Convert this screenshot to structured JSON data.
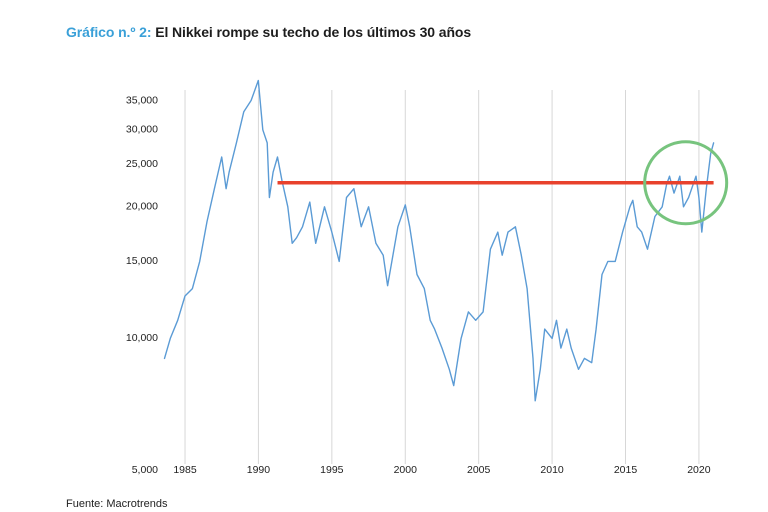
{
  "title": {
    "prefix": "Gráfico n.º 2:",
    "text": "El Nikkei rompe su techo de los últimos 30 años"
  },
  "source": "Fuente: Macrotrends",
  "colors": {
    "line": "#5b9bd5",
    "resistance": "#e8412c",
    "circle": "#77c47e",
    "grid": "#d7d7d7",
    "title_prefix": "#3aa0d8"
  },
  "chart_data": {
    "type": "line",
    "yscale": "log",
    "ylim": [
      5000,
      39000
    ],
    "xlim": [
      1983.5,
      2021.3
    ],
    "yticks": [
      5000,
      10000,
      15000,
      20000,
      25000,
      30000,
      35000
    ],
    "ytick_labels": [
      "5,000",
      "10,000",
      "15,000",
      "20,000",
      "25,000",
      "30,000",
      "35,000"
    ],
    "xticks": [
      1985,
      1990,
      1995,
      2000,
      2005,
      2010,
      2015,
      2020
    ],
    "xtick_labels": [
      "1985",
      "1990",
      "1995",
      "2000",
      "2005",
      "2010",
      "2015",
      "2020"
    ],
    "grid": "vertical",
    "series": [
      {
        "x": [
          1983.6,
          1984.0,
          1984.5,
          1985.0,
          1985.5,
          1986.0,
          1986.5,
          1987.0,
          1987.5,
          1987.8,
          1988.0,
          1988.5,
          1989.0,
          1989.5,
          1989.99,
          1990.3,
          1990.6,
          1990.75,
          1991.0,
          1991.3,
          1991.6,
          1992.0,
          1992.3,
          1992.6,
          1993.0,
          1993.5,
          1993.9,
          1994.5,
          1995.0,
          1995.5,
          1996.0,
          1996.5,
          1997.0,
          1997.5,
          1998.0,
          1998.5,
          1998.8,
          1999.5,
          2000.0,
          2000.3,
          2000.8,
          2001.3,
          2001.7,
          2002.0,
          2002.5,
          2003.0,
          2003.3,
          2003.8,
          2004.3,
          2004.8,
          2005.3,
          2005.8,
          2006.3,
          2006.6,
          2007.0,
          2007.5,
          2007.9,
          2008.3,
          2008.7,
          2008.85,
          2009.2,
          2009.5,
          2010.0,
          2010.3,
          2010.6,
          2011.0,
          2011.3,
          2011.8,
          2012.2,
          2012.7,
          2013.0,
          2013.4,
          2013.8,
          2014.3,
          2014.8,
          2015.3,
          2015.5,
          2015.8,
          2016.1,
          2016.5,
          2017.0,
          2017.5,
          2017.8,
          2018.0,
          2018.3,
          2018.7,
          2018.95,
          2019.3,
          2019.8,
          2020.0,
          2020.2,
          2020.5,
          2020.8,
          2021.0
        ],
        "y": [
          9000,
          10000,
          11000,
          12500,
          13000,
          15000,
          18500,
          22000,
          26000,
          22000,
          24000,
          28000,
          33000,
          35000,
          38900,
          30000,
          28000,
          21000,
          24000,
          26000,
          23000,
          20000,
          16500,
          17000,
          18000,
          20500,
          16500,
          20000,
          17500,
          15000,
          21000,
          22000,
          18000,
          20000,
          16500,
          15500,
          13200,
          18000,
          20200,
          18000,
          14000,
          13000,
          11000,
          10500,
          9500,
          8500,
          7800,
          10000,
          11500,
          11000,
          11500,
          16000,
          17500,
          15500,
          17500,
          18000,
          15500,
          13000,
          9000,
          7200,
          8500,
          10500,
          10000,
          11000,
          9500,
          10500,
          9500,
          8500,
          9000,
          8800,
          10500,
          14000,
          15000,
          15000,
          17500,
          20000,
          20700,
          18000,
          17500,
          16000,
          19000,
          20000,
          22500,
          23500,
          21500,
          23500,
          20000,
          21000,
          23500,
          21000,
          17500,
          22000,
          26500,
          28000
        ]
      }
    ],
    "resistance": {
      "x": [
        1991.3,
        2021.0
      ],
      "y": 22700
    },
    "highlight_circle": {
      "x": 2019.1,
      "y": 22700
    }
  }
}
